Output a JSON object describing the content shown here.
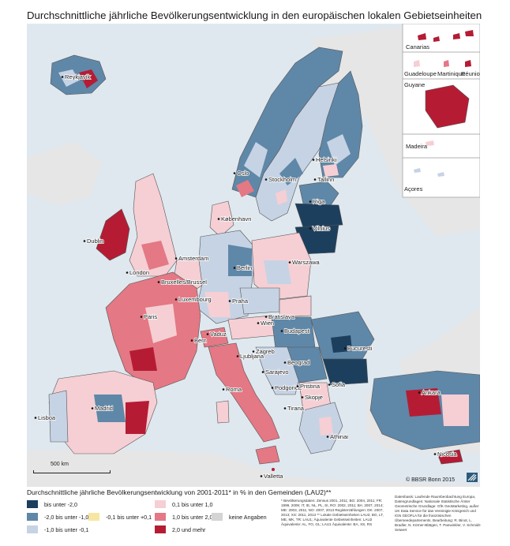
{
  "title": "Durchschnittliche jährliche Bevölkerungsentwicklung in den europäischen lokalen Gebietseinheiten",
  "colors": {
    "sea": "#dfe8ef",
    "land_outside": "#e6e6e6",
    "class1": "#1d3f5e",
    "class2": "#5f87a8",
    "class3": "#c6d3e4",
    "class4": "#f7e6a3",
    "class5": "#f5cfd4",
    "class6": "#e47884",
    "class7": "#b51c34",
    "nodata": "#d4d4d4"
  },
  "cities": [
    "Reykjavík",
    "Oslo",
    "Stockholm",
    "Helsinki",
    "Tallinn",
    "Riga",
    "Vilnius",
    "København",
    "Dublin",
    "London",
    "Amsterdam",
    "Bruxelles/Brussel",
    "Luxembourg",
    "Paris",
    "Berlin",
    "Warszawa",
    "Praha",
    "Wien",
    "Bratislava",
    "Budapest",
    "Bern",
    "Vaduz",
    "Ljubljana",
    "Zagreb",
    "Sarajevo",
    "Beograd",
    "Bucuresti",
    "Sofia",
    "Podgorica",
    "Pristina",
    "Skopje",
    "Tirana",
    "Athinai",
    "Roma",
    "Madrid",
    "Lisboa",
    "Ankara",
    "Nicosia",
    "Valletta"
  ],
  "insets": [
    "Canarias",
    "Guadeloupe",
    "Martinique",
    "Réunion",
    "Guyane",
    "Madeira",
    "Açores"
  ],
  "scale_label": "500 km",
  "copyright": "© BBSR Bonn 2015",
  "legend": {
    "title": "Durchschnittliche jährliche Bevölkerungsentwicklung von 2001-2011* in % in den Gemeinden (LAU2)**",
    "items": [
      {
        "label": "bis unter -2,0",
        "color": "#1d3f5e"
      },
      {
        "label": "-2,0 bis unter -1,0",
        "color": "#5f87a8"
      },
      {
        "label": "-1,0 bis unter -0,1",
        "color": "#c6d3e4"
      },
      {
        "label": "-0,1 bis unter +0,1",
        "color": "#f7e6a3"
      },
      {
        "label": "0,1 bis unter 1,0",
        "color": "#f5cfd4"
      },
      {
        "label": "1,0 bis unter 2,0",
        "color": "#e47884"
      },
      {
        "label": "2,0 und mehr",
        "color": "#b51c34"
      },
      {
        "label": "keine Angaben",
        "color": "#d4d4d4"
      }
    ]
  },
  "notes": "* Bevölkerungsdaten: Zensus 2001, 2011; BG: 2004, 2011; FR: 1999, 2009; IT, IE, NL, PL, SI, RO: 2002, 2011; BA: 2007, 2014; ME: 2003, 2011; NO: 2007, 2013 Registerzählungen: DK: 2007, 2013; XS: 2011, 2013 ** Lokale Gebietseinheiten LAU2; BG, LT, ME, MK, TR: LAU1; Äquivalente Gebietseinheiten: LAU2 Äquivalente: AL, FO, GL; LAU1 Äquivalente: BA, XS, RS",
  "source": "Datenbasis: Laufende Raumbeobachtung Europa, Datengrundlagen: Nationale Statistische Ämter Geometrische Grundlage: GfK GeoMarketing, außer UK Data Service für das Vereinigte Königreich und IGN GEOFLA für die französischen Überseedepartements. Bearbeitung: R. Binot, L. Bradler, N. Körner-Blätgen, T. Panwinkler, V. Schmidt-Seiwert"
}
